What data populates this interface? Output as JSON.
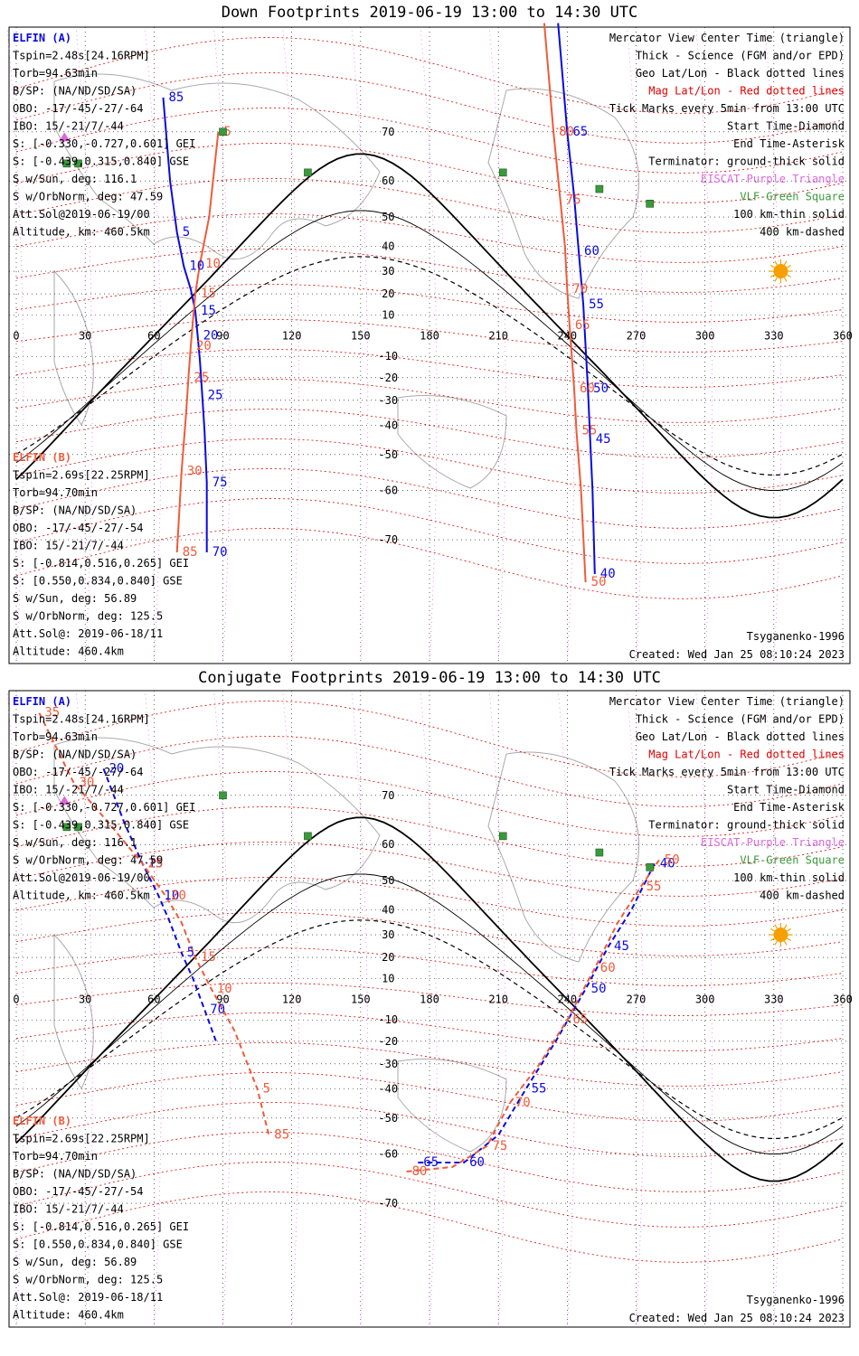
{
  "colors": {
    "elfin_a": "#0a0ae0",
    "elfin_b": "#f05a3a",
    "terminator": "#000000",
    "mag_grid": "#e00000",
    "geo_grid": "#000000",
    "eiscat": "#dd66dd",
    "vlf": "#3a9a3a",
    "sun": "#f5a000",
    "coast": "#aaaaaa"
  },
  "panels": [
    {
      "title": "Down Footprints 2019-06-19 13:00 to 14:30 UTC",
      "elfin_a": {
        "header": "ELFIN (A)",
        "lines": [
          "Tspin=2.48s[24.16RPM]",
          "Torb=94.63min",
          "B/SP: (NA/ND/SD/SA)",
          "OBO: -17/-45/-27/-64",
          "IBO: 15/-21/7/-44",
          "S: [-0.330,-0.727,0.601] GEI",
          "S: [-0.439,0.315,0.840] GSE",
          "S w/Sun, deg: 116.1",
          "S w/OrbNorm, deg: 47.59",
          "Att.Sol@2019-06-19/00",
          "Altitude, km: 460.5km"
        ]
      },
      "elfin_b": {
        "header": "ELFIN (B)",
        "lines": [
          "Tspin=2.69s[22.25RPM]",
          "Torb=94.70min",
          "B/SP: (NA/ND/SD/SA)",
          "OBO: -17/-45/-27/-54",
          "IBO: 15/-21/7/-44",
          "S: [-0.814,0.516,0.265] GEI",
          "S: [0.550,0.834,0.840] GSE",
          "S w/Sun, deg: 56.89",
          "S w/OrbNorm, deg: 125.5",
          "Att.Sol@: 2019-06-18/11",
          "Altitude: 460.4km"
        ]
      },
      "legend": [
        {
          "text": "Mercator View Center Time (triangle)",
          "color": "#000000"
        },
        {
          "text": "Thick - Science (FGM and/or EPD)",
          "color": "#000000"
        },
        {
          "text": "Geo Lat/Lon - Black dotted lines",
          "color": "#000000"
        },
        {
          "text": "Mag Lat/Lon - Red dotted lines",
          "color": "#e00000"
        },
        {
          "text": "Tick Marks every 5min from 13:00 UTC",
          "color": "#000000"
        },
        {
          "text": "Start Time-Diamond",
          "color": "#000000"
        },
        {
          "text": "End Time-Asterisk",
          "color": "#000000"
        },
        {
          "text": "Terminator: ground-thick solid",
          "color": "#000000"
        },
        {
          "text": "EISCAT-Purple Triangle",
          "color": "#dd66dd"
        },
        {
          "text": "VLF-Green Square",
          "color": "#3a9a3a"
        },
        {
          "text": "100 km-thin solid",
          "color": "#000000"
        },
        {
          "text": "400 km-dashed",
          "color": "#000000"
        }
      ],
      "model": "Tsyganenko-1996",
      "created": "Created: Wed Jan 25 08:10:24 2023",
      "mag_labels": [
        "70",
        "60",
        "50",
        "40",
        "30",
        "20",
        "10",
        "-10",
        "-20",
        "-30",
        "-40",
        "-50",
        "-60",
        "-70"
      ],
      "a_tick_labels": [
        "85",
        "5",
        "10",
        "15",
        "20",
        "25",
        "75",
        "70",
        "65",
        "60",
        "55",
        "50",
        "45",
        "40"
      ],
      "b_tick_labels": [
        "5",
        "10",
        "15",
        "20",
        "25",
        "30",
        "85",
        "80",
        "75",
        "70",
        "65",
        "60",
        "55",
        "50"
      ]
    },
    {
      "title": "Conjugate Footprints 2019-06-19 13:00 to 14:30 UTC",
      "elfin_a": {
        "header": "ELFIN (A)",
        "lines": [
          "Tspin=2.48s[24.16RPM]",
          "Torb=94.63min",
          "B/SP: (NA/ND/SD/SA)",
          "OBO: -17/-45/-27/-64",
          "IBO: 15/-21/7/-44",
          "S: [-0.330,-0.727,0.601] GEI",
          "S: [-0.439,0.315,0.840] GSE",
          "S w/Sun, deg: 116.1",
          "S w/OrbNorm, deg: 47.59",
          "Att.Sol@2019-06-19/00",
          "Altitude, km: 460.5km"
        ]
      },
      "elfin_b": {
        "header": "ELFIN (B)",
        "lines": [
          "Tspin=2.69s[22.25RPM]",
          "Torb=94.70min",
          "B/SP: (NA/ND/SD/SA)",
          "OBO: -17/-45/-27/-54",
          "IBO: 15/-21/7/-44",
          "S: [-0.814,0.516,0.265] GEI",
          "S: [0.550,0.834,0.840] GSE",
          "S w/Sun, deg: 56.89",
          "S w/OrbNorm, deg: 125.5",
          "Att.Sol@: 2019-06-18/11",
          "Altitude: 460.4km"
        ]
      },
      "legend": [
        {
          "text": "Mercator View Center Time (triangle)",
          "color": "#000000"
        },
        {
          "text": "Thick - Science (FGM and/or EPD)",
          "color": "#000000"
        },
        {
          "text": "Geo Lat/Lon - Black dotted lines",
          "color": "#000000"
        },
        {
          "text": "Mag Lat/Lon - Red dotted lines",
          "color": "#e00000"
        },
        {
          "text": "Tick Marks every 5min from 13:00 UTC",
          "color": "#000000"
        },
        {
          "text": "Start Time-Diamond",
          "color": "#000000"
        },
        {
          "text": "End Time-Asterisk",
          "color": "#000000"
        },
        {
          "text": "Terminator: ground-thick solid",
          "color": "#000000"
        },
        {
          "text": "EISCAT-Purple Triangle",
          "color": "#dd66dd"
        },
        {
          "text": "VLF-Green Square",
          "color": "#3a9a3a"
        },
        {
          "text": "100 km-thin solid",
          "color": "#000000"
        },
        {
          "text": "400 km-dashed",
          "color": "#000000"
        }
      ],
      "model": "Tsyganenko-1996",
      "created": "Created: Wed Jan 25 08:10:24 2023",
      "mag_labels": [
        "70",
        "60",
        "50",
        "40",
        "30",
        "20",
        "10",
        "-10",
        "-20",
        "-30",
        "-40",
        "-50",
        "-60",
        "-70"
      ],
      "a_tick_labels": [
        "20",
        "15",
        "10",
        "5",
        "70",
        "65",
        "60",
        "55",
        "50",
        "45",
        "40"
      ],
      "b_tick_labels": [
        "35",
        "30",
        "25",
        "20",
        "15",
        "10",
        "5",
        "85",
        "80",
        "75",
        "70",
        "65",
        "60",
        "55",
        "50"
      ]
    }
  ],
  "chart_data": [
    {
      "type": "scatter",
      "title": "Down Footprints 2019-06-19 13:00 to 14:30 UTC",
      "x_ticks": [
        "0",
        "30",
        "60",
        "90",
        "120",
        "150",
        "180",
        "210",
        "240",
        "270",
        "300",
        "330",
        "360"
      ],
      "xlim": [
        0,
        360
      ],
      "ylim": [
        -78,
        85
      ],
      "series": [
        {
          "name": "ELFIN (A)",
          "x": [
            64,
            67,
            70,
            73,
            76,
            78,
            79,
            80,
            81,
            82,
            83,
            83
          ],
          "y": [
            75,
            60,
            45,
            32,
            22,
            12,
            0,
            -12,
            -28,
            -42,
            -58,
            -72
          ]
        },
        {
          "name": "ELFIN (A)",
          "x": [
            236,
            240,
            243,
            245,
            247,
            248,
            249,
            250,
            251,
            252
          ],
          "y": [
            82,
            70,
            56,
            38,
            15,
            -5,
            -25,
            -45,
            -60,
            -75
          ]
        },
        {
          "name": "ELFIN (B)",
          "x": [
            88,
            84,
            80,
            78,
            77,
            76,
            75,
            74,
            72,
            70
          ],
          "y": [
            70,
            50,
            33,
            20,
            8,
            -5,
            -20,
            -35,
            -55,
            -72
          ]
        },
        {
          "name": "ELFIN (B)",
          "x": [
            230,
            234,
            237,
            239,
            240,
            241,
            242,
            243,
            244,
            246,
            248
          ],
          "y": [
            82,
            70,
            55,
            40,
            22,
            5,
            -10,
            -25,
            -42,
            -60,
            -76
          ]
        }
      ],
      "markers": {
        "eiscat": [
          [
            21,
            69
          ]
        ],
        "vlf": [
          [
            27,
            64
          ],
          [
            90,
            70
          ],
          [
            127,
            62
          ],
          [
            212,
            62
          ],
          [
            254,
            58
          ],
          [
            276,
            54
          ],
          [
            22,
            64
          ]
        ],
        "sun": [
          [
            333,
            30
          ]
        ]
      }
    },
    {
      "type": "scatter",
      "title": "Conjugate Footprints 2019-06-19 13:00 to 14:30 UTC",
      "x_ticks": [
        "0",
        "30",
        "60",
        "90",
        "120",
        "150",
        "180",
        "210",
        "240",
        "270",
        "300",
        "330",
        "360"
      ],
      "xlim": [
        0,
        360
      ],
      "ylim": [
        -78,
        85
      ],
      "series": [
        {
          "name": "ELFIN (A)",
          "x": [
            38,
            47,
            55,
            62,
            67,
            72,
            77,
            82,
            87
          ],
          "y": [
            74,
            65,
            55,
            45,
            35,
            22,
            10,
            -5,
            -20
          ]
        },
        {
          "name": "ELFIN (A)",
          "x": [
            175,
            195,
            210,
            222,
            235,
            248,
            258,
            268,
            278
          ],
          "y": [
            -62,
            -62,
            -55,
            -40,
            -20,
            5,
            25,
            40,
            55
          ]
        },
        {
          "name": "ELFIN (B)",
          "x": [
            10,
            25,
            40,
            55,
            65,
            72,
            78,
            85,
            95,
            105,
            110
          ],
          "y": [
            80,
            72,
            65,
            55,
            45,
            35,
            20,
            5,
            -15,
            -40,
            -55
          ]
        },
        {
          "name": "ELFIN (B)",
          "x": [
            170,
            190,
            205,
            215,
            228,
            240,
            252,
            262,
            272,
            280
          ],
          "y": [
            -64,
            -63,
            -58,
            -45,
            -30,
            -10,
            15,
            35,
            48,
            56
          ]
        }
      ],
      "markers": {
        "eiscat": [
          [
            21,
            69
          ]
        ],
        "vlf": [
          [
            27,
            64
          ],
          [
            90,
            70
          ],
          [
            127,
            62
          ],
          [
            212,
            62
          ],
          [
            254,
            58
          ],
          [
            276,
            54
          ],
          [
            22,
            64
          ]
        ],
        "sun": [
          [
            333,
            30
          ]
        ]
      }
    }
  ]
}
